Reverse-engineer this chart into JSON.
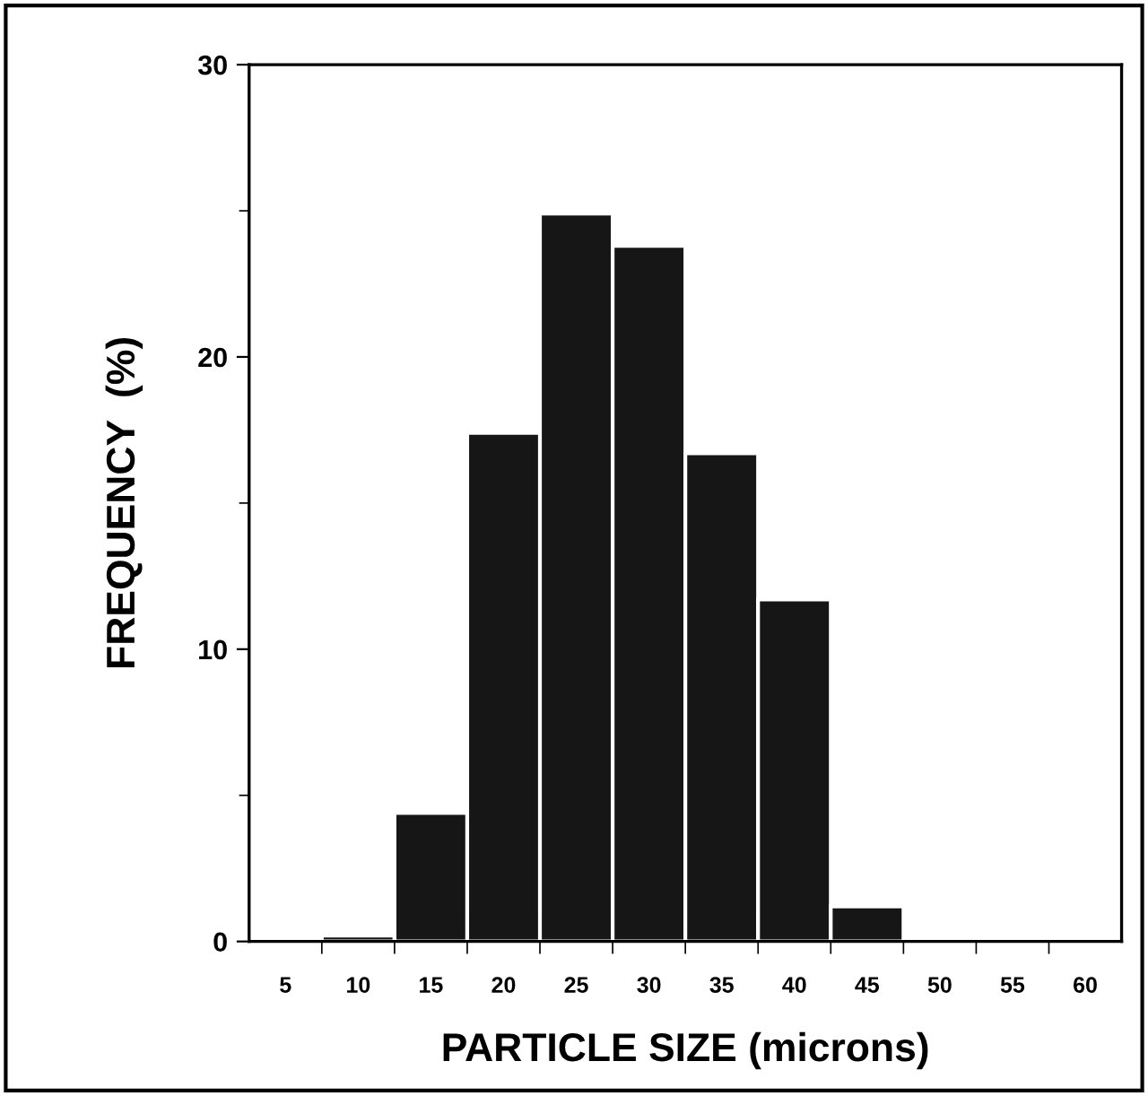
{
  "chart_data": {
    "type": "histogram",
    "xlabel": "PARTICLE SIZE (microns)",
    "ylabel": "FREQUENCY  (%)",
    "bins": [
      2.5,
      7.5,
      12.5,
      17.5,
      22.5,
      27.5,
      32.5,
      37.5,
      42.5,
      47.5,
      52.5,
      57.5,
      62.5
    ],
    "values": [
      0,
      0.2,
      4.4,
      17.4,
      24.9,
      23.8,
      16.7,
      11.7,
      1.2,
      0,
      0,
      0
    ],
    "color": "#161616",
    "xlim": [
      2.5,
      62.5
    ],
    "ylim": [
      0,
      30
    ],
    "xticks": [
      5,
      10,
      15,
      20,
      25,
      30,
      35,
      40,
      45,
      50,
      55,
      60,
      {
        "value": 7.5,
        "label": null
      },
      {
        "value": 12.5,
        "label": null
      },
      {
        "value": 17.5,
        "label": null
      },
      {
        "value": 22.5,
        "label": null
      },
      {
        "value": 27.5,
        "label": null
      },
      {
        "value": 32.5,
        "label": null
      },
      {
        "value": 37.5,
        "label": null
      },
      {
        "value": 42.5,
        "label": null
      },
      {
        "value": 47.5,
        "label": null
      },
      {
        "value": 52.5,
        "label": null
      },
      {
        "value": 57.5,
        "label": null
      }
    ],
    "yticks": [
      0,
      10,
      20,
      30,
      {
        "value": 5,
        "label": null
      },
      {
        "value": 15,
        "label": null
      },
      {
        "value": 25,
        "label": null
      }
    ],
    "grid": false
  }
}
